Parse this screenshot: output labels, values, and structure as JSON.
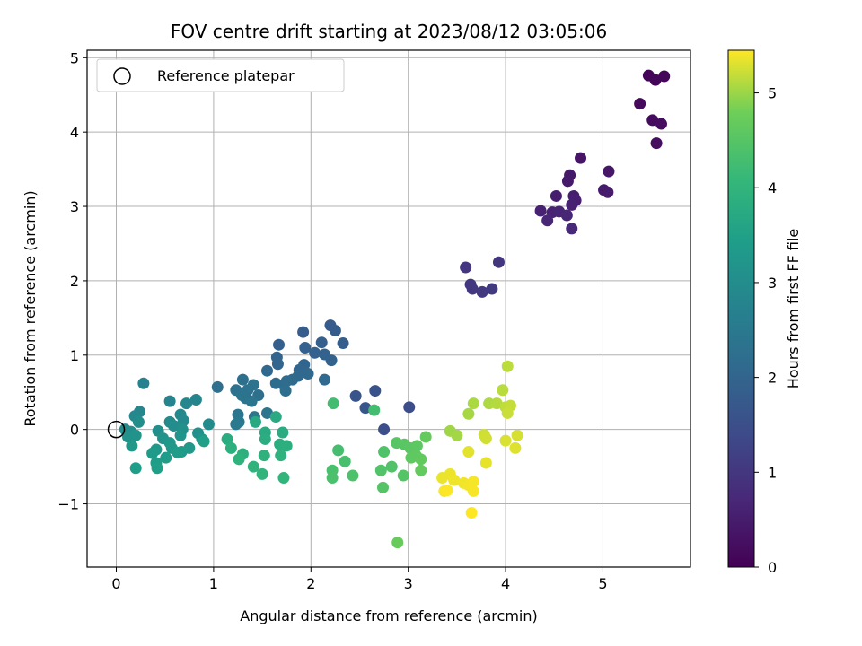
{
  "chart_data": {
    "type": "scatter",
    "title": "FOV centre drift starting at 2023/08/12 03:05:06",
    "xlabel": "Angular distance from reference (arcmin)",
    "ylabel": "Rotation from reference (arcmin)",
    "xlim": [
      -0.3,
      5.9
    ],
    "ylim": [
      -1.85,
      5.1
    ],
    "xticks": [
      "0",
      "1",
      "2",
      "3",
      "4",
      "5"
    ],
    "yticks": [
      "−1",
      "0",
      "1",
      "2",
      "3",
      "4",
      "5"
    ],
    "grid": true,
    "legend": {
      "placement": "upper-left",
      "entries": [
        "Reference platepar"
      ]
    },
    "reference_point": {
      "x": 0,
      "y": 0
    },
    "colorbar": {
      "label": "Hours from first FF file",
      "range": [
        0,
        5.45
      ],
      "ticks": [
        "0",
        "1",
        "2",
        "3",
        "4",
        "5"
      ],
      "colormap": "viridis"
    },
    "points": [
      {
        "x": 5.47,
        "y": 4.76,
        "h": 0.05
      },
      {
        "x": 5.54,
        "y": 4.7,
        "h": 0.08
      },
      {
        "x": 5.63,
        "y": 4.75,
        "h": 0.1
      },
      {
        "x": 5.38,
        "y": 4.38,
        "h": 0.15
      },
      {
        "x": 5.51,
        "y": 4.16,
        "h": 0.18
      },
      {
        "x": 5.6,
        "y": 4.11,
        "h": 0.2
      },
      {
        "x": 5.55,
        "y": 3.85,
        "h": 0.22
      },
      {
        "x": 4.77,
        "y": 3.65,
        "h": 0.35
      },
      {
        "x": 5.06,
        "y": 3.47,
        "h": 0.38
      },
      {
        "x": 4.66,
        "y": 3.42,
        "h": 0.4
      },
      {
        "x": 4.64,
        "y": 3.34,
        "h": 0.42
      },
      {
        "x": 5.01,
        "y": 3.22,
        "h": 0.45
      },
      {
        "x": 5.05,
        "y": 3.19,
        "h": 0.47
      },
      {
        "x": 4.52,
        "y": 3.14,
        "h": 0.5
      },
      {
        "x": 4.7,
        "y": 3.14,
        "h": 0.52
      },
      {
        "x": 4.72,
        "y": 3.08,
        "h": 0.54
      },
      {
        "x": 4.68,
        "y": 3.02,
        "h": 0.56
      },
      {
        "x": 4.36,
        "y": 2.94,
        "h": 0.58
      },
      {
        "x": 4.48,
        "y": 2.92,
        "h": 0.6
      },
      {
        "x": 4.55,
        "y": 2.93,
        "h": 0.62
      },
      {
        "x": 4.63,
        "y": 2.88,
        "h": 0.64
      },
      {
        "x": 4.43,
        "y": 2.81,
        "h": 0.66
      },
      {
        "x": 4.68,
        "y": 2.7,
        "h": 0.68
      },
      {
        "x": 3.93,
        "y": 2.25,
        "h": 0.95
      },
      {
        "x": 3.59,
        "y": 2.18,
        "h": 0.98
      },
      {
        "x": 3.64,
        "y": 1.95,
        "h": 1.0
      },
      {
        "x": 3.66,
        "y": 1.89,
        "h": 1.02
      },
      {
        "x": 3.76,
        "y": 1.85,
        "h": 1.04
      },
      {
        "x": 3.86,
        "y": 1.89,
        "h": 1.06
      },
      {
        "x": 3.01,
        "y": 0.3,
        "h": 1.45
      },
      {
        "x": 2.75,
        "y": 0.0,
        "h": 1.5
      },
      {
        "x": 2.66,
        "y": 0.52,
        "h": 1.55
      },
      {
        "x": 2.46,
        "y": 0.45,
        "h": 1.6
      },
      {
        "x": 2.56,
        "y": 0.29,
        "h": 1.65
      },
      {
        "x": 2.2,
        "y": 1.4,
        "h": 1.75
      },
      {
        "x": 2.25,
        "y": 1.33,
        "h": 1.78
      },
      {
        "x": 1.92,
        "y": 1.31,
        "h": 1.8
      },
      {
        "x": 2.33,
        "y": 1.16,
        "h": 1.82
      },
      {
        "x": 2.11,
        "y": 1.17,
        "h": 1.84
      },
      {
        "x": 1.67,
        "y": 1.14,
        "h": 1.86
      },
      {
        "x": 1.94,
        "y": 1.1,
        "h": 1.88
      },
      {
        "x": 2.04,
        "y": 1.03,
        "h": 1.9
      },
      {
        "x": 2.14,
        "y": 1.01,
        "h": 1.92
      },
      {
        "x": 2.21,
        "y": 0.93,
        "h": 1.94
      },
      {
        "x": 1.65,
        "y": 0.97,
        "h": 1.96
      },
      {
        "x": 1.93,
        "y": 0.87,
        "h": 1.98
      },
      {
        "x": 1.66,
        "y": 0.88,
        "h": 2.0
      },
      {
        "x": 1.88,
        "y": 0.8,
        "h": 2.02
      },
      {
        "x": 1.55,
        "y": 0.79,
        "h": 2.04
      },
      {
        "x": 1.97,
        "y": 0.75,
        "h": 2.06
      },
      {
        "x": 1.87,
        "y": 0.72,
        "h": 2.08
      },
      {
        "x": 2.14,
        "y": 0.67,
        "h": 2.1
      },
      {
        "x": 1.81,
        "y": 0.67,
        "h": 2.12
      },
      {
        "x": 1.75,
        "y": 0.65,
        "h": 2.14
      },
      {
        "x": 1.72,
        "y": 0.6,
        "h": 2.16
      },
      {
        "x": 1.64,
        "y": 0.62,
        "h": 2.18
      },
      {
        "x": 1.74,
        "y": 0.52,
        "h": 2.2
      },
      {
        "x": 1.3,
        "y": 0.67,
        "h": 2.22
      },
      {
        "x": 1.46,
        "y": 0.46,
        "h": 2.24
      },
      {
        "x": 1.04,
        "y": 0.57,
        "h": 2.26
      },
      {
        "x": 1.23,
        "y": 0.53,
        "h": 2.28
      },
      {
        "x": 1.35,
        "y": 0.53,
        "h": 2.3
      },
      {
        "x": 1.41,
        "y": 0.6,
        "h": 2.32
      },
      {
        "x": 1.33,
        "y": 0.42,
        "h": 2.34
      },
      {
        "x": 1.29,
        "y": 0.46,
        "h": 2.36
      },
      {
        "x": 1.39,
        "y": 0.38,
        "h": 2.38
      },
      {
        "x": 1.55,
        "y": 0.22,
        "h": 2.4
      },
      {
        "x": 1.25,
        "y": 0.2,
        "h": 2.42
      },
      {
        "x": 1.42,
        "y": 0.17,
        "h": 2.44
      },
      {
        "x": 1.26,
        "y": 0.1,
        "h": 2.46
      },
      {
        "x": 1.23,
        "y": 0.07,
        "h": 2.48
      },
      {
        "x": 0.28,
        "y": 0.62,
        "h": 2.75
      },
      {
        "x": 0.55,
        "y": 0.38,
        "h": 2.78
      },
      {
        "x": 0.82,
        "y": 0.4,
        "h": 2.8
      },
      {
        "x": 0.72,
        "y": 0.35,
        "h": 2.82
      },
      {
        "x": 0.24,
        "y": 0.24,
        "h": 2.85
      },
      {
        "x": 0.19,
        "y": 0.18,
        "h": 2.87
      },
      {
        "x": 0.66,
        "y": 0.2,
        "h": 2.89
      },
      {
        "x": 0.69,
        "y": 0.12,
        "h": 2.91
      },
      {
        "x": 0.55,
        "y": 0.1,
        "h": 2.93
      },
      {
        "x": 0.95,
        "y": 0.07,
        "h": 2.95
      },
      {
        "x": 0.59,
        "y": 0.05,
        "h": 2.97
      },
      {
        "x": 0.23,
        "y": 0.1,
        "h": 2.99
      },
      {
        "x": 0.09,
        "y": 0.0,
        "h": 3.01
      },
      {
        "x": 0.15,
        "y": -0.03,
        "h": 3.03
      },
      {
        "x": 0.43,
        "y": -0.02,
        "h": 3.05
      },
      {
        "x": 0.68,
        "y": 0.0,
        "h": 3.07
      },
      {
        "x": 0.84,
        "y": -0.05,
        "h": 3.09
      },
      {
        "x": 0.12,
        "y": -0.1,
        "h": 3.11
      },
      {
        "x": 0.2,
        "y": -0.08,
        "h": 3.13
      },
      {
        "x": 0.48,
        "y": -0.12,
        "h": 3.15
      },
      {
        "x": 0.66,
        "y": -0.08,
        "h": 3.17
      },
      {
        "x": 0.88,
        "y": -0.13,
        "h": 3.19
      },
      {
        "x": 0.55,
        "y": -0.18,
        "h": 3.21
      },
      {
        "x": 0.16,
        "y": -0.22,
        "h": 3.23
      },
      {
        "x": 0.75,
        "y": -0.25,
        "h": 3.25
      },
      {
        "x": 0.41,
        "y": -0.27,
        "h": 3.27
      },
      {
        "x": 0.57,
        "y": -0.25,
        "h": 3.29
      },
      {
        "x": 0.67,
        "y": -0.3,
        "h": 3.31
      },
      {
        "x": 0.37,
        "y": -0.32,
        "h": 3.33
      },
      {
        "x": 0.63,
        "y": -0.31,
        "h": 3.35
      },
      {
        "x": 0.51,
        "y": -0.38,
        "h": 3.37
      },
      {
        "x": 0.41,
        "y": -0.45,
        "h": 3.39
      },
      {
        "x": 0.2,
        "y": -0.52,
        "h": 3.41
      },
      {
        "x": 0.42,
        "y": -0.52,
        "h": 3.43
      },
      {
        "x": 0.9,
        "y": -0.16,
        "h": 3.45
      },
      {
        "x": 1.43,
        "y": 0.1,
        "h": 3.7
      },
      {
        "x": 1.64,
        "y": 0.17,
        "h": 3.72
      },
      {
        "x": 1.53,
        "y": -0.04,
        "h": 3.74
      },
      {
        "x": 1.71,
        "y": -0.04,
        "h": 3.76
      },
      {
        "x": 1.14,
        "y": -0.13,
        "h": 3.78
      },
      {
        "x": 1.53,
        "y": -0.13,
        "h": 3.8
      },
      {
        "x": 1.68,
        "y": -0.2,
        "h": 3.82
      },
      {
        "x": 1.75,
        "y": -0.22,
        "h": 3.84
      },
      {
        "x": 1.18,
        "y": -0.25,
        "h": 3.86
      },
      {
        "x": 1.3,
        "y": -0.33,
        "h": 3.88
      },
      {
        "x": 1.52,
        "y": -0.35,
        "h": 3.9
      },
      {
        "x": 1.69,
        "y": -0.35,
        "h": 3.92
      },
      {
        "x": 1.26,
        "y": -0.4,
        "h": 3.94
      },
      {
        "x": 1.41,
        "y": -0.5,
        "h": 3.96
      },
      {
        "x": 1.5,
        "y": -0.6,
        "h": 3.98
      },
      {
        "x": 1.72,
        "y": -0.65,
        "h": 4.0
      },
      {
        "x": 2.23,
        "y": 0.35,
        "h": 4.25
      },
      {
        "x": 2.65,
        "y": 0.26,
        "h": 4.27
      },
      {
        "x": 2.28,
        "y": -0.28,
        "h": 4.3
      },
      {
        "x": 2.35,
        "y": -0.43,
        "h": 4.32
      },
      {
        "x": 2.22,
        "y": -0.55,
        "h": 4.34
      },
      {
        "x": 2.22,
        "y": -0.65,
        "h": 4.36
      },
      {
        "x": 2.43,
        "y": -0.62,
        "h": 4.38
      },
      {
        "x": 2.75,
        "y": -0.3,
        "h": 4.4
      },
      {
        "x": 2.83,
        "y": -0.5,
        "h": 4.42
      },
      {
        "x": 2.72,
        "y": -0.55,
        "h": 4.44
      },
      {
        "x": 2.95,
        "y": -0.62,
        "h": 4.46
      },
      {
        "x": 2.74,
        "y": -0.78,
        "h": 4.48
      },
      {
        "x": 2.88,
        "y": -0.18,
        "h": 4.5
      },
      {
        "x": 2.96,
        "y": -0.2,
        "h": 4.52
      },
      {
        "x": 3.02,
        "y": -0.25,
        "h": 4.54
      },
      {
        "x": 3.09,
        "y": -0.22,
        "h": 4.56
      },
      {
        "x": 3.03,
        "y": -0.38,
        "h": 4.58
      },
      {
        "x": 3.08,
        "y": -0.35,
        "h": 4.6
      },
      {
        "x": 3.13,
        "y": -0.4,
        "h": 4.62
      },
      {
        "x": 3.13,
        "y": -0.55,
        "h": 4.64
      },
      {
        "x": 3.18,
        "y": -0.1,
        "h": 4.66
      },
      {
        "x": 2.89,
        "y": -1.52,
        "h": 4.68
      },
      {
        "x": 3.43,
        "y": -0.02,
        "h": 5.0
      },
      {
        "x": 3.5,
        "y": -0.08,
        "h": 5.02
      },
      {
        "x": 3.62,
        "y": 0.21,
        "h": 5.04
      },
      {
        "x": 3.67,
        "y": 0.35,
        "h": 5.06
      },
      {
        "x": 3.83,
        "y": 0.35,
        "h": 5.08
      },
      {
        "x": 3.91,
        "y": 0.35,
        "h": 5.1
      },
      {
        "x": 3.97,
        "y": 0.53,
        "h": 5.12
      },
      {
        "x": 4.02,
        "y": 0.85,
        "h": 5.14
      },
      {
        "x": 4.0,
        "y": 0.3,
        "h": 5.16
      },
      {
        "x": 4.05,
        "y": 0.32,
        "h": 5.18
      },
      {
        "x": 4.02,
        "y": 0.22,
        "h": 5.2
      },
      {
        "x": 3.78,
        "y": -0.07,
        "h": 5.22
      },
      {
        "x": 3.8,
        "y": -0.12,
        "h": 5.24
      },
      {
        "x": 4.12,
        "y": -0.08,
        "h": 5.26
      },
      {
        "x": 4.0,
        "y": -0.15,
        "h": 5.28
      },
      {
        "x": 4.1,
        "y": -0.25,
        "h": 5.3
      },
      {
        "x": 3.62,
        "y": -0.3,
        "h": 5.32
      },
      {
        "x": 3.8,
        "y": -0.45,
        "h": 5.34
      },
      {
        "x": 3.35,
        "y": -0.65,
        "h": 5.36
      },
      {
        "x": 3.43,
        "y": -0.6,
        "h": 5.37
      },
      {
        "x": 3.47,
        "y": -0.68,
        "h": 5.38
      },
      {
        "x": 3.57,
        "y": -0.72,
        "h": 5.39
      },
      {
        "x": 3.62,
        "y": -0.75,
        "h": 5.4
      },
      {
        "x": 3.67,
        "y": -0.7,
        "h": 5.41
      },
      {
        "x": 3.67,
        "y": -0.83,
        "h": 5.42
      },
      {
        "x": 3.37,
        "y": -0.83,
        "h": 5.43
      },
      {
        "x": 3.4,
        "y": -0.82,
        "h": 5.44
      },
      {
        "x": 3.65,
        "y": -1.12,
        "h": 5.45
      }
    ]
  }
}
